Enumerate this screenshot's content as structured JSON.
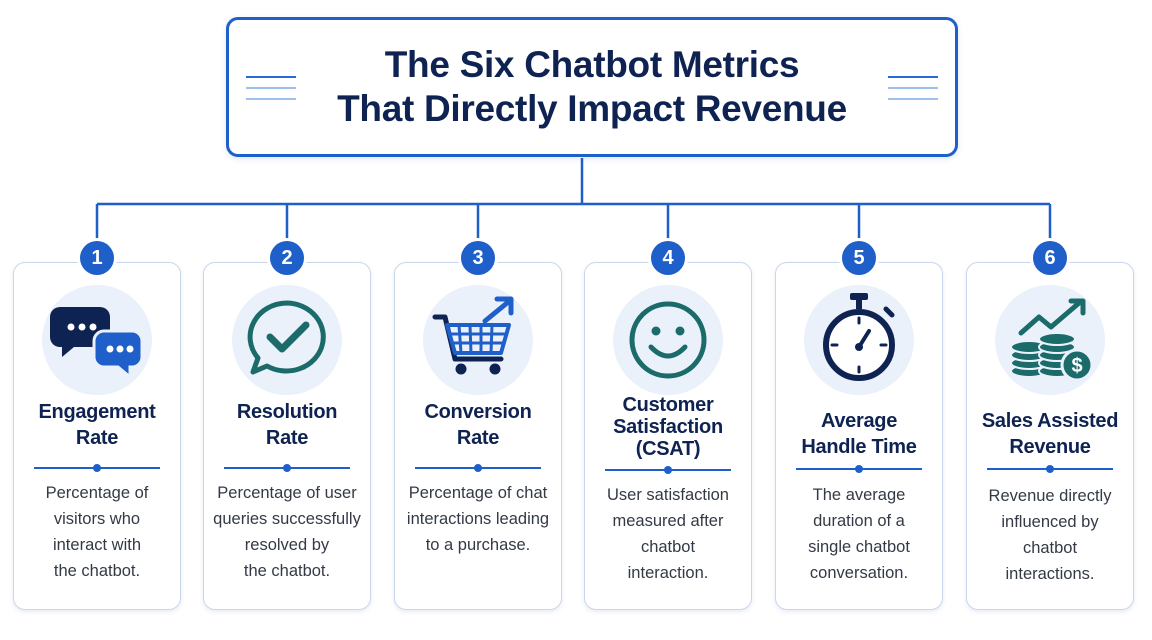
{
  "title": {
    "line1": "The Six Chatbot Metrics",
    "line2": "That Directly Impact Revenue"
  },
  "colors": {
    "accent": "#1f5fc9",
    "navy": "#0f2352",
    "teal": "#1b6b6b",
    "icon_bg": "#eaf1fb"
  },
  "metrics": [
    {
      "number": "1",
      "icon": "chat-bubbles-icon",
      "title_lines": [
        "Engagement",
        "Rate"
      ],
      "desc_lines": [
        "Percentage of",
        "visitors who",
        "interact with",
        "the chatbot."
      ]
    },
    {
      "number": "2",
      "icon": "checkmark-chat-icon",
      "title_lines": [
        "Resolution",
        "Rate"
      ],
      "desc_lines": [
        "Percentage of user",
        "queries successfully",
        "resolved by",
        "the chatbot."
      ]
    },
    {
      "number": "3",
      "icon": "shopping-cart-arrow-icon",
      "title_lines": [
        "Conversion",
        "Rate"
      ],
      "desc_lines": [
        "Percentage of chat",
        "interactions leading",
        "to a purchase."
      ]
    },
    {
      "number": "4",
      "icon": "smiley-face-icon",
      "title_lines": [
        "Customer",
        "Satisfaction",
        "(CSAT)"
      ],
      "desc_lines": [
        "User satisfaction",
        "measured after",
        "chatbot",
        "interaction."
      ]
    },
    {
      "number": "5",
      "icon": "stopwatch-icon",
      "title_lines": [
        "Average",
        "Handle Time"
      ],
      "desc_lines": [
        "The average",
        "duration of a",
        "single chatbot",
        "conversation."
      ]
    },
    {
      "number": "6",
      "icon": "coins-growth-icon",
      "title_lines": [
        "Sales Assisted",
        "Revenue"
      ],
      "desc_lines": [
        "Revenue directly",
        "influenced by",
        "chatbot",
        "interactions."
      ]
    }
  ]
}
